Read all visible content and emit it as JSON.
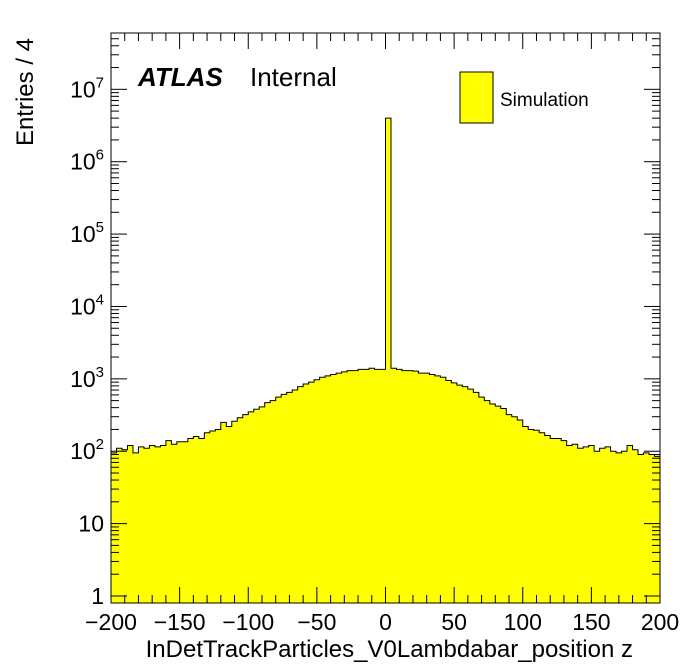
{
  "chart_data": {
    "type": "histogram",
    "xlabel": "InDetTrackParticles_V0Lambdabar_position z",
    "ylabel": "Entries / 4",
    "xlim": [
      -200,
      200
    ],
    "ylim": [
      0.8,
      60000000
    ],
    "log_y": true,
    "bin_width": 4,
    "x_ticks": [
      -200,
      -150,
      -100,
      -50,
      0,
      50,
      100,
      150,
      200
    ],
    "x_tick_labels": [
      "−200",
      "−150",
      "−100",
      "−50",
      "0",
      "50",
      "100",
      "150",
      "200"
    ],
    "y_ticks": [
      {
        "value": 1,
        "base": "1",
        "exp": ""
      },
      {
        "value": 10,
        "base": "10",
        "exp": ""
      },
      {
        "value": 100,
        "base": "10",
        "exp": "2"
      },
      {
        "value": 1000,
        "base": "10",
        "exp": "3"
      },
      {
        "value": 10000,
        "base": "10",
        "exp": "4"
      },
      {
        "value": 100000,
        "base": "10",
        "exp": "5"
      },
      {
        "value": 1000000,
        "base": "10",
        "exp": "6"
      },
      {
        "value": 10000000,
        "base": "10",
        "exp": "7"
      }
    ],
    "series": [
      {
        "name": "Simulation",
        "color": "#ffff00",
        "bin_low_edges": [
          -200,
          -196,
          -192,
          -188,
          -184,
          -180,
          -176,
          -172,
          -168,
          -164,
          -160,
          -156,
          -152,
          -148,
          -144,
          -140,
          -136,
          -132,
          -128,
          -124,
          -120,
          -116,
          -112,
          -108,
          -104,
          -100,
          -96,
          -92,
          -88,
          -84,
          -80,
          -76,
          -72,
          -68,
          -64,
          -60,
          -56,
          -52,
          -48,
          -44,
          -40,
          -36,
          -32,
          -28,
          -24,
          -20,
          -16,
          -12,
          -8,
          -4,
          0,
          4,
          8,
          12,
          16,
          20,
          24,
          28,
          32,
          36,
          40,
          44,
          48,
          52,
          56,
          60,
          64,
          68,
          72,
          76,
          80,
          84,
          88,
          92,
          96,
          100,
          104,
          108,
          112,
          116,
          120,
          124,
          128,
          132,
          136,
          140,
          144,
          148,
          152,
          156,
          160,
          164,
          168,
          172,
          176,
          180,
          184,
          188,
          192,
          196
        ],
        "values": [
          95,
          110,
          105,
          120,
          95,
          115,
          110,
          120,
          115,
          120,
          140,
          125,
          135,
          135,
          150,
          160,
          150,
          180,
          190,
          200,
          250,
          220,
          260,
          290,
          320,
          350,
          380,
          410,
          470,
          500,
          560,
          610,
          650,
          700,
          780,
          850,
          900,
          970,
          1050,
          1100,
          1150,
          1200,
          1250,
          1300,
          1300,
          1350,
          1350,
          1400,
          1350,
          1350,
          4000000,
          1400,
          1350,
          1300,
          1300,
          1280,
          1200,
          1200,
          1150,
          1100,
          1050,
          950,
          880,
          820,
          780,
          720,
          650,
          560,
          500,
          450,
          420,
          390,
          320,
          300,
          270,
          220,
          200,
          195,
          180,
          165,
          150,
          150,
          140,
          120,
          125,
          110,
          115,
          120,
          100,
          110,
          115,
          100,
          95,
          100,
          120,
          105,
          90,
          95,
          90,
          85
        ]
      }
    ],
    "legend": {
      "position": "top-right",
      "label": "Simulation"
    },
    "annotation": {
      "bold": "ATLAS",
      "text": "Internal"
    },
    "grid": false
  }
}
